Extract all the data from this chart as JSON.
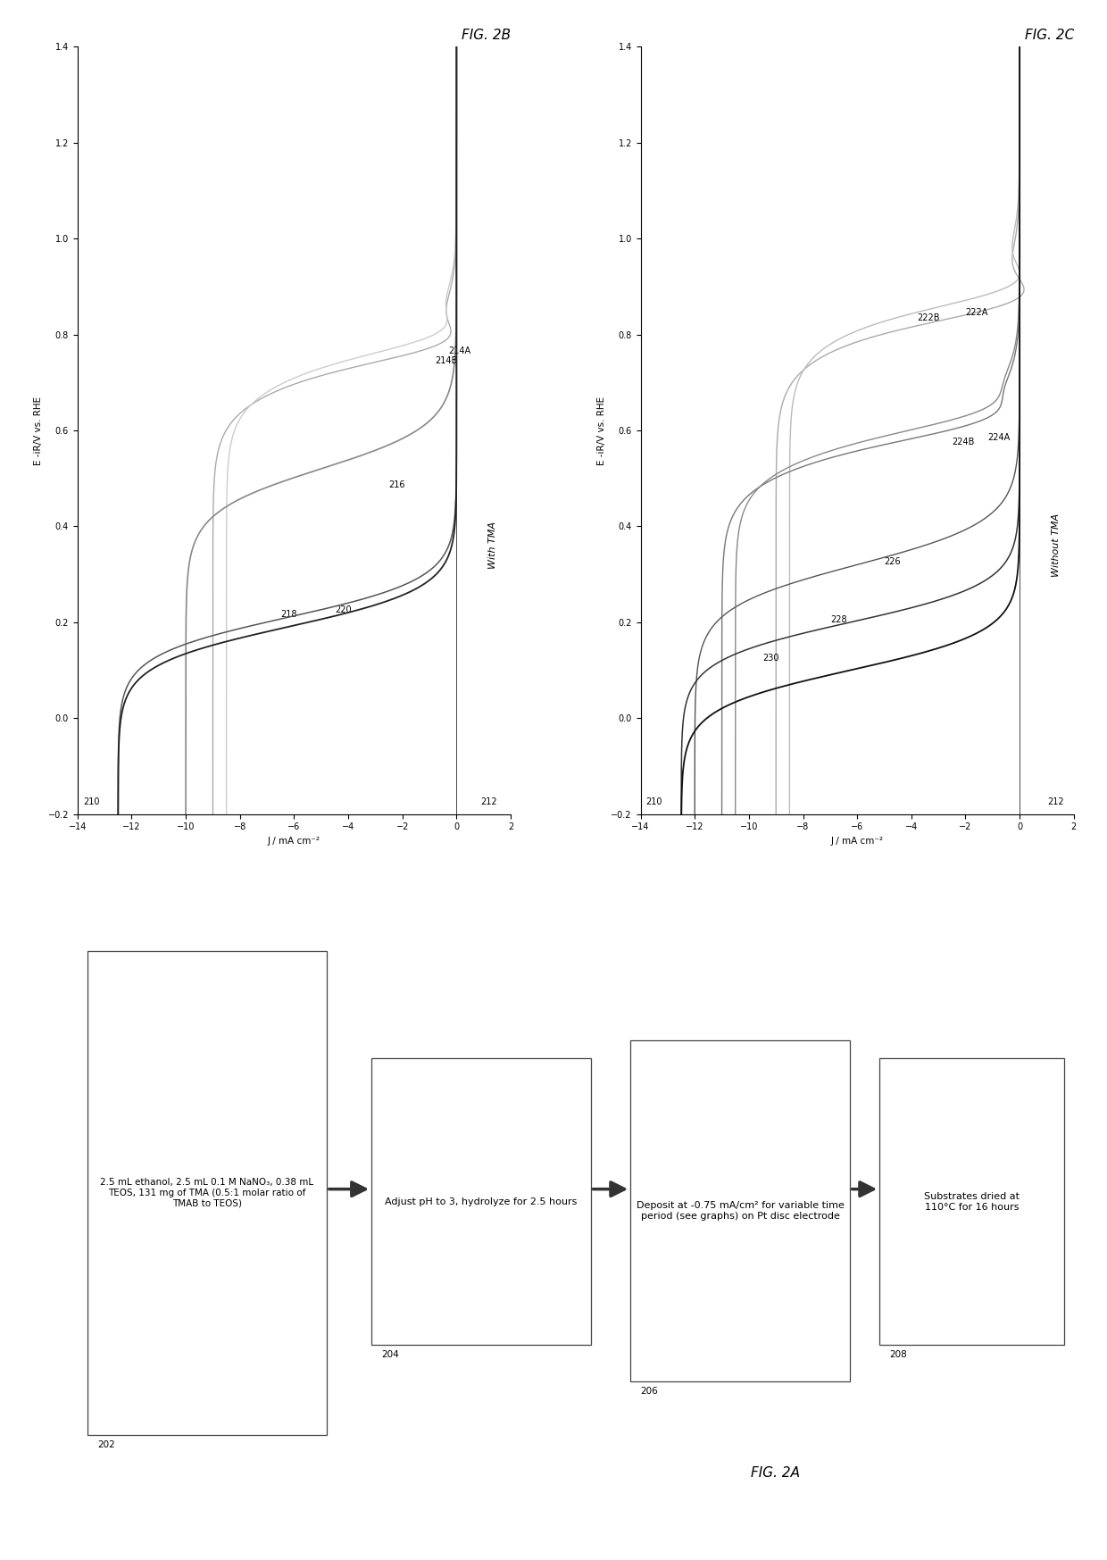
{
  "fig_width": 12.4,
  "fig_height": 17.47,
  "background_color": "#ffffff",
  "fig2b_title": "FIG. 2B",
  "fig2c_title": "FIG. 2C",
  "fig2a_title": "FIG. 2A",
  "ylabel_2b": "E -iR/V vs. RHE",
  "ylabel_2c": "E -iR/V vs. RHE",
  "xlabel": "J / mA cm⁻²",
  "xlim": [
    -14,
    2
  ],
  "ylim": [
    -0.2,
    1.4
  ],
  "xticks": [
    -14,
    -12,
    -10,
    -8,
    -6,
    -4,
    -2,
    0,
    2
  ],
  "yticks": [
    -0.2,
    0.0,
    0.2,
    0.4,
    0.6,
    0.8,
    1.0,
    1.2,
    1.4
  ],
  "with_tma_label": "With TMA",
  "without_tma_label": "Without TMA",
  "fig2b_curve_labels": [
    {
      "text": "220",
      "j": -4.5,
      "e": 0.22
    },
    {
      "text": "218",
      "j": -6.5,
      "e": 0.21
    },
    {
      "text": "216",
      "j": -2.5,
      "e": 0.48
    },
    {
      "text": "214A",
      "j": -0.3,
      "e": 0.76
    },
    {
      "text": "214B",
      "j": -0.8,
      "e": 0.74
    }
  ],
  "fig2c_curve_labels": [
    {
      "text": "230",
      "j": -9.5,
      "e": 0.12
    },
    {
      "text": "228",
      "j": -7.0,
      "e": 0.2
    },
    {
      "text": "226",
      "j": -5.0,
      "e": 0.32
    },
    {
      "text": "224A",
      "j": -1.2,
      "e": 0.58
    },
    {
      "text": "224B",
      "j": -2.5,
      "e": 0.57
    },
    {
      "text": "222A",
      "j": -2.0,
      "e": 0.84
    },
    {
      "text": "222B",
      "j": -3.8,
      "e": 0.83
    }
  ],
  "flow_boxes": [
    {
      "text": "2.5 mL ethanol, 2.5 mL 0.1 M NaNO₃, 0.38 mL\nTEOS, 131 mg of TMA (0.5:1 molar ratio of\nTMAB to TEOS)",
      "label": "202",
      "is_tall": true
    },
    {
      "text": "Adjust pH to 3, hydrolyze for 2.5 hours",
      "label": "204",
      "is_tall": false
    },
    {
      "text": "Deposit at -0.75 mA/cm² for variable time\nperiod (see graphs) on Pt disc electrode",
      "label": "206",
      "is_tall": false
    },
    {
      "text": "Substrates dried at\n110°C for 16 hours",
      "label": "208",
      "is_tall": false
    }
  ]
}
